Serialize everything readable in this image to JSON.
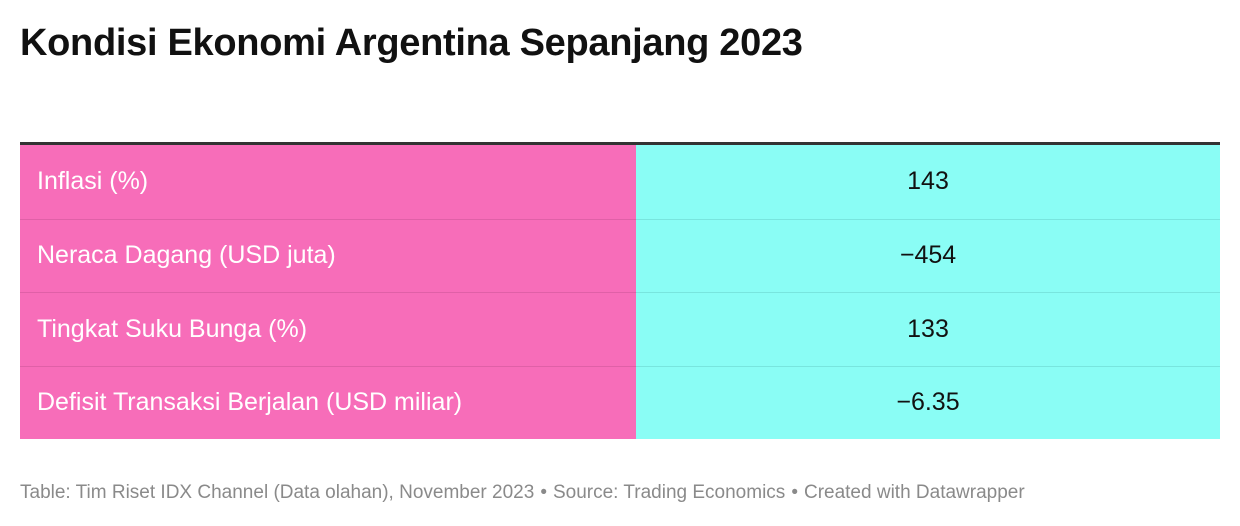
{
  "title": "Kondisi Ekonomi Argentina Sepanjang 2023",
  "colors": {
    "label_bg": "#f76db9",
    "value_bg": "#8afdf5",
    "label_text": "#ffffff",
    "value_text": "#111111"
  },
  "chart_data": {
    "type": "table",
    "title": "Kondisi Ekonomi Argentina Sepanjang 2023",
    "rows": [
      {
        "label": "Inflasi (%)",
        "value": "143"
      },
      {
        "label": "Neraca Dagang (USD juta)",
        "value": "−454"
      },
      {
        "label": "Tingkat Suku Bunga (%)",
        "value": "133"
      },
      {
        "label": "Defisit Transaksi Berjalan (USD miliar)",
        "value": "−6.35"
      }
    ]
  },
  "footer": {
    "table_credit": "Table: Tim Riset IDX Channel (Data olahan), November 2023",
    "source": "Source: Trading Economics",
    "created": "Created with Datawrapper",
    "separator": "•"
  }
}
